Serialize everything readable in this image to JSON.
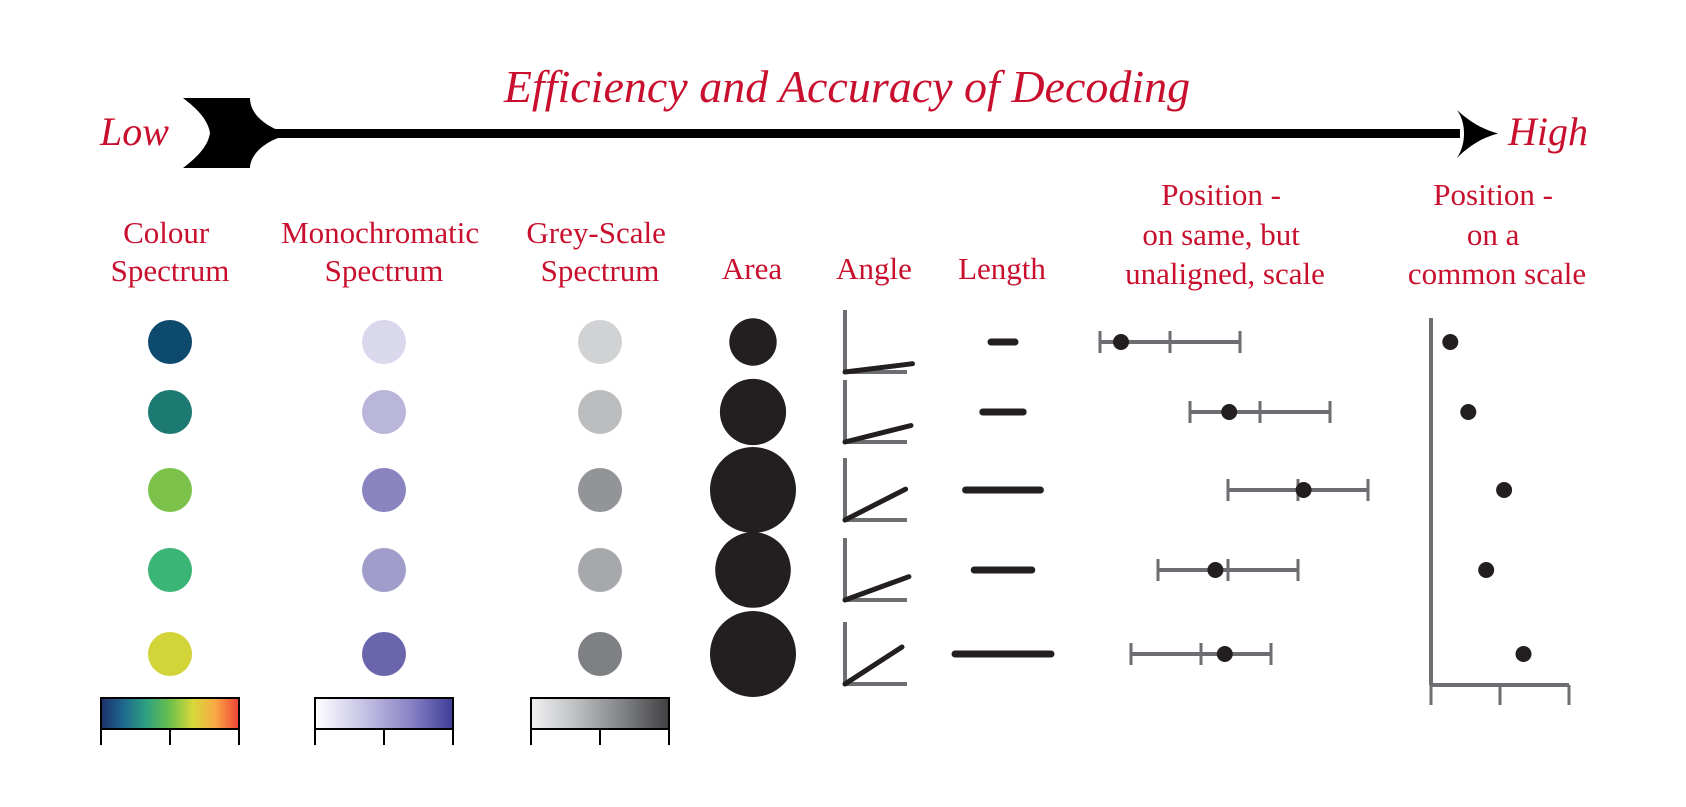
{
  "title": "Efficiency and Accuracy of Decoding",
  "low_label": "Low",
  "high_label": "High",
  "colors": {
    "text": "#c8102e",
    "ink": "#231f20",
    "axis": "#6d6e71"
  },
  "columns": [
    {
      "key": "colour",
      "lines": [
        "Colour",
        "Spectrum"
      ]
    },
    {
      "key": "monochromatic",
      "lines": [
        "Monochromatic",
        "Spectrum"
      ]
    },
    {
      "key": "greyscale",
      "lines": [
        "Grey-Scale",
        "Spectrum"
      ]
    },
    {
      "key": "area",
      "lines": [
        "Area"
      ]
    },
    {
      "key": "angle",
      "lines": [
        "Angle"
      ]
    },
    {
      "key": "length",
      "lines": [
        "Length"
      ]
    },
    {
      "key": "unaligned",
      "lines": [
        "Position -",
        "on same, but",
        "unaligned, scale"
      ]
    },
    {
      "key": "common",
      "lines": [
        "Position -",
        "on a",
        "common scale"
      ]
    }
  ],
  "rows": {
    "colour": [
      "#0e4a6e",
      "#1c7a72",
      "#7cc24a",
      "#3ab575",
      "#d3d43a"
    ],
    "monochromatic": [
      "#dad8ec",
      "#b9b6da",
      "#8a85c0",
      "#a19dcb",
      "#6b66ac"
    ],
    "greyscale": [
      "#d1d2d4",
      "#bbbdbf",
      "#929497",
      "#a6a8ab",
      "#7e8083"
    ],
    "area_relative": [
      0.55,
      0.77,
      1.0,
      0.88,
      1.0
    ],
    "angle_degrees": [
      7,
      14,
      27,
      20,
      33
    ],
    "length_relative": [
      0.25,
      0.42,
      0.78,
      0.6,
      1.0
    ],
    "unaligned_dot_fraction": [
      0.15,
      0.28,
      0.54,
      0.41,
      0.67
    ],
    "common_fraction": [
      0.14,
      0.27,
      0.53,
      0.4,
      0.67
    ]
  },
  "legends": {
    "colour": [
      "#1e2f6b",
      "#1e6a8e",
      "#2fa27f",
      "#6cc04a",
      "#d9d83b",
      "#f9a744",
      "#ef4136"
    ],
    "monochromatic": [
      "#ffffff",
      "#c9c6e6",
      "#8f88c8",
      "#3f3d99"
    ],
    "greyscale": [
      "#f1f1f2",
      "#bcbec0",
      "#808285",
      "#414042"
    ]
  }
}
